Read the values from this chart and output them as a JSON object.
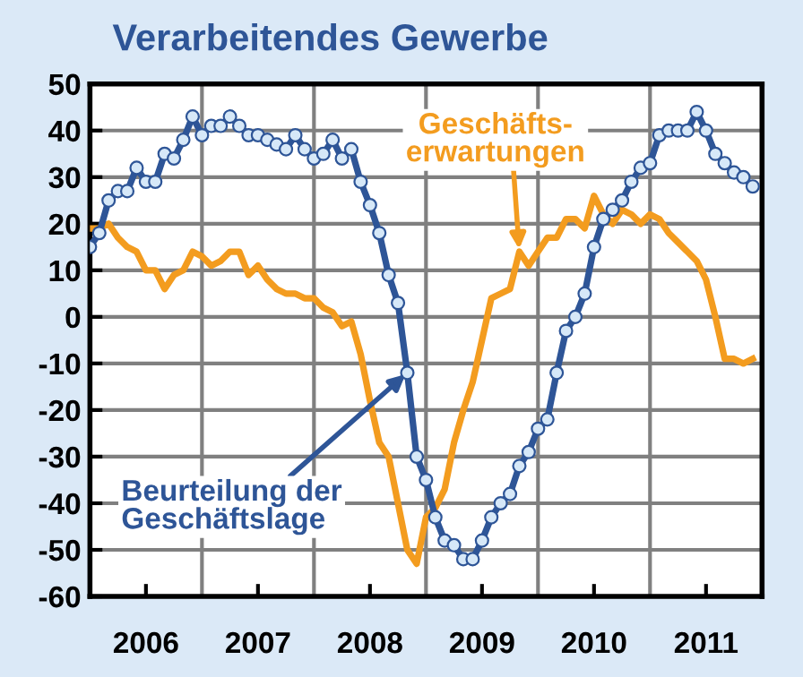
{
  "chart_data": {
    "type": "line",
    "title": "Verarbeitendes Gewerbe",
    "x": [
      "2006-01",
      "2006-02",
      "2006-03",
      "2006-04",
      "2006-05",
      "2006-06",
      "2006-07",
      "2006-08",
      "2006-09",
      "2006-10",
      "2006-11",
      "2006-12",
      "2007-01",
      "2007-02",
      "2007-03",
      "2007-04",
      "2007-05",
      "2007-06",
      "2007-07",
      "2007-08",
      "2007-09",
      "2007-10",
      "2007-11",
      "2007-12",
      "2008-01",
      "2008-02",
      "2008-03",
      "2008-04",
      "2008-05",
      "2008-06",
      "2008-07",
      "2008-08",
      "2008-09",
      "2008-10",
      "2008-11",
      "2008-12",
      "2009-01",
      "2009-02",
      "2009-03",
      "2009-04",
      "2009-05",
      "2009-06",
      "2009-07",
      "2009-08",
      "2009-09",
      "2009-10",
      "2009-11",
      "2009-12",
      "2010-01",
      "2010-02",
      "2010-03",
      "2010-04",
      "2010-05",
      "2010-06",
      "2010-07",
      "2010-08",
      "2010-09",
      "2010-10",
      "2010-11",
      "2010-12",
      "2011-01",
      "2011-02",
      "2011-03",
      "2011-04",
      "2011-05",
      "2011-06",
      "2011-07",
      "2011-08",
      "2011-09",
      "2011-10",
      "2011-11",
      "2011-12"
    ],
    "series": [
      {
        "color": "#2e5597",
        "marker": "circle",
        "values": [
          15,
          18,
          25,
          27,
          27,
          32,
          29,
          29,
          35,
          34,
          38,
          43,
          39,
          41,
          41,
          43,
          41,
          39,
          39,
          38,
          37,
          36,
          39,
          36,
          34,
          35,
          38,
          34,
          36,
          29,
          24,
          18,
          9,
          3,
          -12,
          -30,
          -35,
          -43,
          -48,
          -49,
          -52,
          -52,
          -48,
          -43,
          -40,
          -38,
          -32,
          -29,
          -24,
          -22,
          -12,
          -3,
          0,
          5,
          15,
          21,
          23,
          25,
          29,
          32,
          33,
          39,
          40,
          40,
          40,
          44,
          40,
          35,
          33,
          31,
          30,
          28
        ]
      },
      {
        "color": "#f39c1f",
        "marker": "none",
        "values": [
          19,
          19,
          20,
          17,
          15,
          14,
          10,
          10,
          6,
          9,
          10,
          14,
          13,
          11,
          12,
          14,
          14,
          9,
          11,
          8,
          6,
          5,
          5,
          4,
          4,
          2,
          1,
          -2,
          -1,
          -8,
          -18,
          -27,
          -30,
          -40,
          -50,
          -53,
          -43,
          -41,
          -37,
          -27,
          -20,
          -14,
          -5,
          4,
          5,
          6,
          14,
          11,
          14,
          17,
          17,
          21,
          21,
          19,
          26,
          22,
          20,
          23,
          22,
          20,
          22,
          21,
          18,
          16,
          14,
          12,
          8,
          0,
          -9,
          -9,
          -10,
          -9
        ]
      }
    ],
    "xlim": [
      "2006-01",
      "2012-01"
    ],
    "xticks": [
      {
        "value": "2006-07",
        "label": "2006"
      },
      {
        "value": "2007-01",
        "label": null
      },
      {
        "value": "2007-07",
        "label": "2007"
      },
      {
        "value": "2008-01",
        "label": null
      },
      {
        "value": "2008-07",
        "label": "2008"
      },
      {
        "value": "2009-01",
        "label": null
      },
      {
        "value": "2009-07",
        "label": "2009"
      },
      {
        "value": "2010-01",
        "label": null
      },
      {
        "value": "2010-07",
        "label": "2010"
      },
      {
        "value": "2011-01",
        "label": null
      },
      {
        "value": "2011-07",
        "label": "2011"
      }
    ],
    "ylim": [
      -60,
      50
    ],
    "yticks": [
      -60,
      -50,
      -40,
      -30,
      -20,
      -10,
      0,
      10,
      20,
      30,
      40,
      50
    ],
    "grid": true,
    "annotations": [
      {
        "text": "Beurteilung der\nGeschäftslage",
        "x": "2008-11",
        "y": -12
      },
      {
        "text": "Geschäfts-\nerwartungen",
        "x": "2009-11",
        "y": 14
      }
    ]
  }
}
